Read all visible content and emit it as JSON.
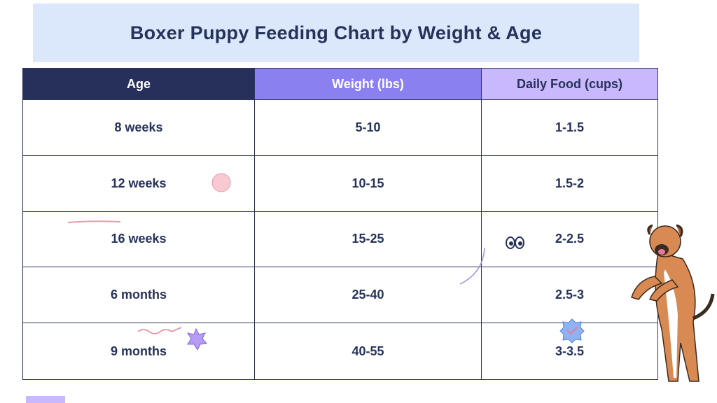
{
  "header": {
    "title": "Boxer Puppy Feeding Chart by Weight & Age"
  },
  "table": {
    "columns": [
      "Age",
      "Weight (lbs)",
      "Daily Food (cups)"
    ],
    "rows": [
      [
        "8 weeks",
        "5-10",
        "1-1.5"
      ],
      [
        "12 weeks",
        "10-15",
        "1.5-2"
      ],
      [
        "16 weeks",
        "15-25",
        "2-2.5"
      ],
      [
        "6 months",
        "25-40",
        "2.5-3"
      ],
      [
        "9 months",
        "40-55",
        "3-3.5"
      ]
    ]
  }
}
